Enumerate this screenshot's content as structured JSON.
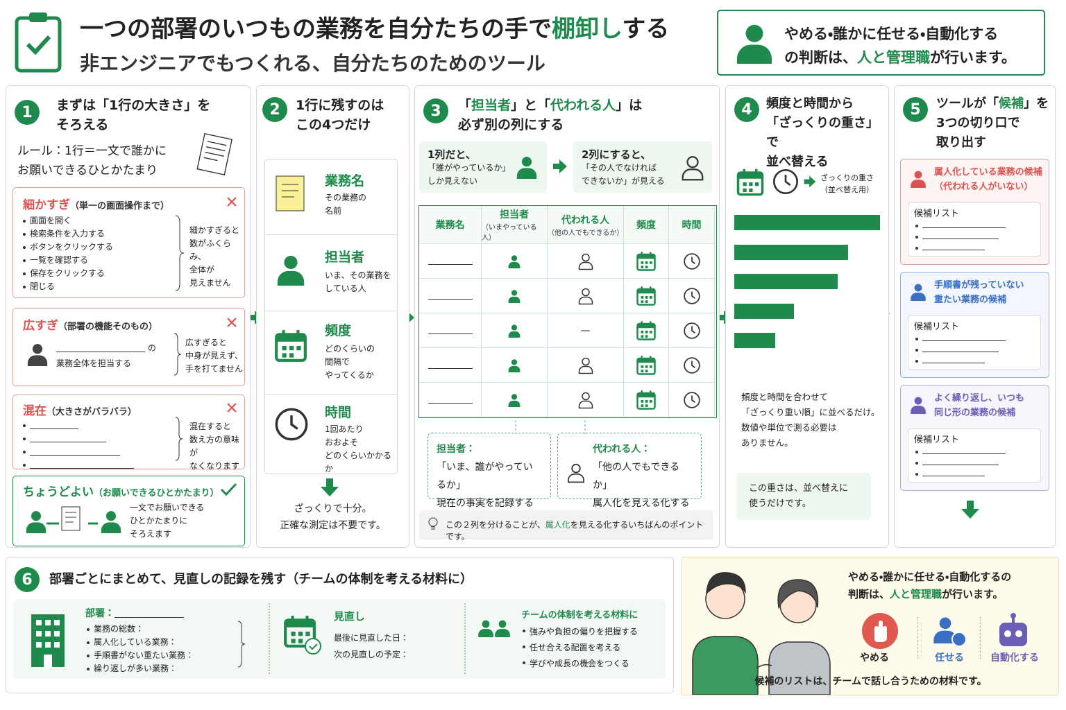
{
  "header": {
    "title": [
      "一つの部署のいつもの業務を自分たちの手で",
      "棚卸し",
      "する"
    ],
    "subtitle": "非エンジニアでもつくれる、自分たちのためのツール"
  },
  "decision_note": {
    "line1": "やめる・誰かに任せる・自動化する",
    "line2": [
      "の判断は、",
      "人と管理職",
      "が行います。"
    ]
  },
  "step1": {
    "number": "1",
    "title": [
      "まずは「1行の大きさ」を",
      "そろえる"
    ],
    "rule": [
      "ルール：1行＝一文で誰かに",
      "お願いできるひとかたまり"
    ],
    "too_fine": {
      "label": "細かすぎ",
      "note": "（単一の画面操作まで）",
      "items": [
        "画面を開く",
        "検索条件を入力する",
        "ボタンをクリックする",
        "一覧を確認する",
        "保存をクリックする",
        "閉じる"
      ],
      "comment": [
        "細かすぎると",
        "数がふくらみ、",
        "全体が",
        "見えません"
      ]
    },
    "too_broad": {
      "label": "広すぎ",
      "note": "（部署の機能そのもの）",
      "line1_suffix": "の",
      "line2": "業務全体を担当する",
      "comment": [
        "広すぎると",
        "中身が見えず、",
        "手を打てません"
      ]
    },
    "mixed": {
      "label": "混在",
      "note": "（大きさがバラバラ）",
      "comment": [
        "混在すると",
        "数え方の意味が",
        "なくなります"
      ]
    },
    "just_right": {
      "label": "ちょうどよい",
      "note": "（お願いできるひとかたまり）",
      "desc": [
        "一文でお願いできる",
        "ひとかたまりに",
        "そろえます"
      ]
    }
  },
  "step2": {
    "number": "2",
    "title": [
      "1行に残すのは",
      "この4つだけ"
    ],
    "items": [
      {
        "name": "業務名",
        "desc": [
          "その業務の",
          "名前"
        ]
      },
      {
        "name": "担当者",
        "desc": [
          "いま、その業務を",
          "している人"
        ]
      },
      {
        "name": "頻度",
        "desc": [
          "どのくらいの",
          "間隔で",
          "やってくるか"
        ]
      },
      {
        "name": "時間",
        "desc": [
          "1回あたり",
          "おおよそ",
          "どのくらいかかるか"
        ]
      }
    ],
    "footer": [
      "ざっくりで十分。",
      "正確な測定は不要です。"
    ]
  },
  "step3": {
    "number": "3",
    "title": [
      "「",
      "担当者",
      "」と「",
      "代われる人",
      "」は"
    ],
    "title_line2": "必ず別の列にする",
    "one_column": {
      "heading": "1列だと、",
      "desc": [
        "「誰がやっているか」",
        "しか見えない"
      ]
    },
    "two_columns": {
      "heading": "2列にすると、",
      "desc": [
        "「その人でなければ",
        "できないか」が見える"
      ]
    },
    "table": {
      "headers": [
        {
          "label": "業務名"
        },
        {
          "label": "担当者",
          "sub": "（いまやっている人）"
        },
        {
          "label": "代われる人",
          "sub": "（他の人でもできるか）"
        },
        {
          "label": "頻度"
        },
        {
          "label": "時間"
        }
      ],
      "substitute_cells": [
        null,
        null,
        "—",
        null,
        null
      ]
    },
    "owner_callout": {
      "label": "担当者：",
      "lines": [
        "「いま、誰がやっているか」",
        "現在の事実を記録する列"
      ]
    },
    "substitute_callout": {
      "label": "代われる人：",
      "lines": [
        "「他の人でもできるか」",
        "属人化を見える化する列"
      ]
    },
    "tip": [
      "この２列を分けることが、",
      "属人化",
      "を見える化するいちばんのポイントです。"
    ]
  },
  "step4": {
    "number": "4",
    "title": [
      "頻度と時間から",
      "「ざっくりの重さ」で",
      "並べ替える"
    ],
    "legend": [
      "ざっくりの重さ",
      "（並べ替え用）"
    ],
    "bars": [
      100,
      78,
      71,
      41,
      28
    ],
    "desc": [
      "頻度と時間を合わせて",
      "「ざっくり重い順」に並べるだけ。",
      "数値や単位で測る必要は",
      "ありません。"
    ],
    "box": [
      "この重さは、並べ替えに",
      "使うだけです。"
    ]
  },
  "step5": {
    "number": "5",
    "title": [
      "ツールが「",
      "候補",
      "」を"
    ],
    "title_lines": [
      "3つの切り口で",
      "取り出す"
    ],
    "candidates": [
      {
        "title": [
          "属人化している業務の候補",
          "（代われる人がいない）"
        ],
        "list_label": "候補リスト"
      },
      {
        "title": [
          "手順書が残っていない",
          "重たい業務の候補"
        ],
        "list_label": "候補リスト"
      },
      {
        "title": [
          "よく繰り返し、いつも",
          "同じ形の業務の候補"
        ],
        "list_label": "候補リスト"
      }
    ]
  },
  "step6": {
    "number": "6",
    "title": "部署ごとにまとめて、見直しの記録を残す（チームの体制を考える材料に）",
    "department": {
      "label": "部署：",
      "items": [
        "業務の総数：",
        "属人化している業務：",
        "手順書がない重たい業務：",
        "繰り返しが多い業務："
      ]
    },
    "review": {
      "title": "見直し",
      "items": [
        "最後に見直した日：",
        "次の見直しの予定："
      ]
    },
    "team": {
      "title": "チームの体制を考える材料に",
      "items": [
        "強みや負担の偏りを把握する",
        "任せ合える配置を考える",
        "学びや成長の機会をつくる"
      ]
    }
  },
  "discussion": {
    "line1": "やめる・誰かに任せる・自動化するの",
    "line2": [
      "判断は、",
      "人と管理職",
      "が行います。"
    ],
    "actions": [
      "やめる",
      "任せる",
      "自動化する"
    ],
    "footer": "候補のリストは、チームで話し合うための材料です。"
  }
}
